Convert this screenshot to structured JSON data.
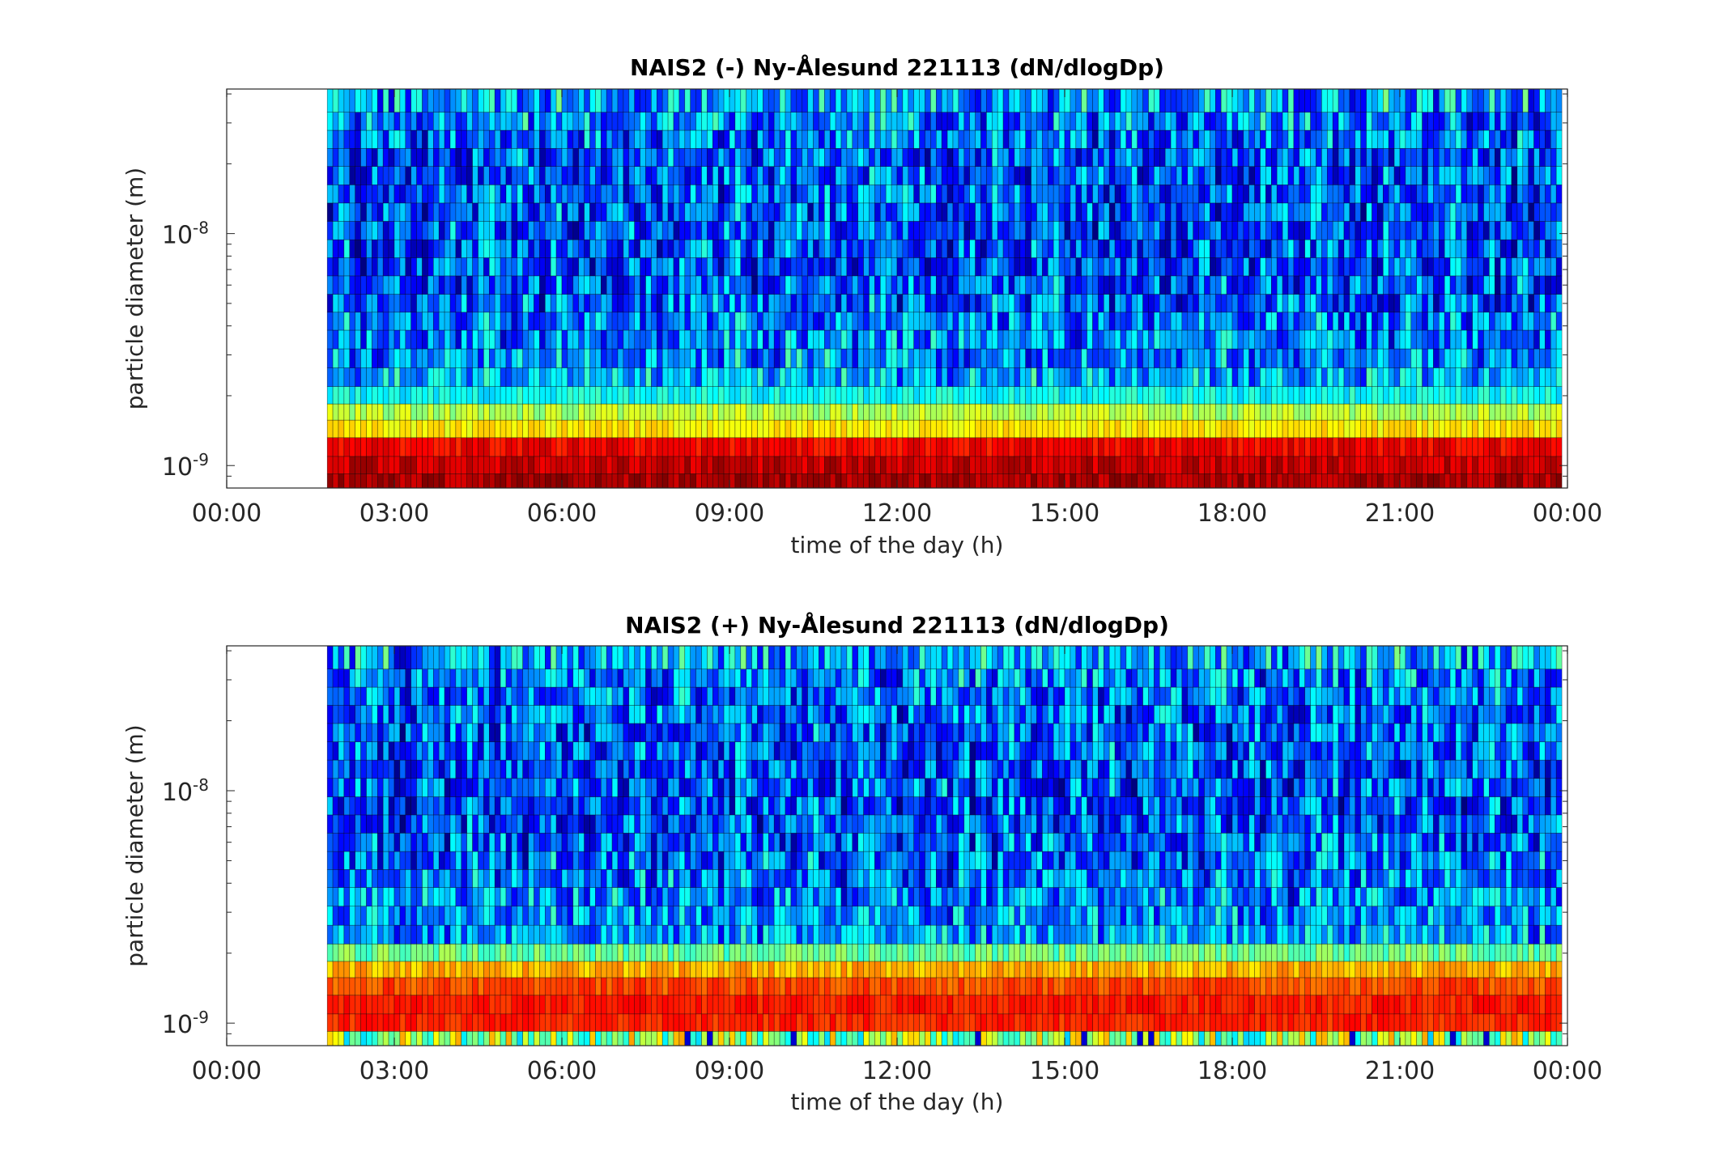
{
  "chart_data": [
    {
      "type": "heatmap",
      "title": "NAIS2 (-) Ny-Ålesund 221113 (dN/dlogDp)",
      "xlabel": "time of the day (h)",
      "ylabel": "particle diameter (m)",
      "x_tick_labels": [
        "00:00",
        "03:00",
        "06:00",
        "09:00",
        "12:00",
        "15:00",
        "18:00",
        "21:00",
        "00:00"
      ],
      "x_ticks_hours": [
        0,
        3,
        6,
        9,
        12,
        15,
        18,
        21,
        24
      ],
      "y_tick_labels": [
        {
          "base": "10",
          "exp": "-9"
        },
        {
          "base": "10",
          "exp": "-8"
        }
      ],
      "y_ticks_m": [
        1e-09,
        1e-08
      ],
      "y_scale": "log",
      "xlim_hours": [
        0,
        24
      ],
      "ylim_m": [
        8e-10,
        4.2e-08
      ],
      "data_start_hour": 1.8,
      "data_end_hour": 23.9,
      "time_step_min": 6,
      "colormap": "jet",
      "size_bins_m": [
        8.5e-10,
        1e-09,
        1.2e-09,
        1.45e-09,
        1.7e-09,
        2e-09,
        2.4e-09,
        2.9e-09,
        3.5e-09,
        4.2e-09,
        5e-09,
        6e-09,
        7.2e-09,
        8.6e-09,
        1.03e-08,
        1.24e-08,
        1.48e-08,
        1.78e-08,
        2.13e-08,
        2.55e-08,
        3.05e-08,
        3.65e-08
      ],
      "band_levels": [
        0.96,
        0.93,
        0.88,
        0.64,
        0.55,
        0.38,
        0.3,
        0.26,
        0.25,
        0.24,
        0.22,
        0.21,
        0.2,
        0.2,
        0.2,
        0.2,
        0.21,
        0.21,
        0.22,
        0.23,
        0.25,
        0.28
      ],
      "band_noise": [
        0.05,
        0.05,
        0.05,
        0.05,
        0.06,
        0.06,
        0.13,
        0.14,
        0.15,
        0.15,
        0.16,
        0.16,
        0.16,
        0.16,
        0.16,
        0.16,
        0.16,
        0.16,
        0.16,
        0.16,
        0.17,
        0.18
      ]
    },
    {
      "type": "heatmap",
      "title": "NAIS2 (+) Ny-Ålesund 221113 (dN/dlogDp)",
      "xlabel": "time of the day (h)",
      "ylabel": "particle diameter (m)",
      "x_tick_labels": [
        "00:00",
        "03:00",
        "06:00",
        "09:00",
        "12:00",
        "15:00",
        "18:00",
        "21:00",
        "00:00"
      ],
      "x_ticks_hours": [
        0,
        3,
        6,
        9,
        12,
        15,
        18,
        21,
        24
      ],
      "y_tick_labels": [
        {
          "base": "10",
          "exp": "-9"
        },
        {
          "base": "10",
          "exp": "-8"
        }
      ],
      "y_ticks_m": [
        1e-09,
        1e-08
      ],
      "y_scale": "log",
      "xlim_hours": [
        0,
        24
      ],
      "ylim_m": [
        8e-10,
        4.2e-08
      ],
      "data_start_hour": 1.8,
      "data_end_hour": 23.9,
      "time_step_min": 6,
      "colormap": "jet",
      "size_bins_m": [
        8.5e-10,
        1e-09,
        1.2e-09,
        1.45e-09,
        1.7e-09,
        2e-09,
        2.4e-09,
        2.9e-09,
        3.5e-09,
        4.2e-09,
        5e-09,
        6e-09,
        7.2e-09,
        8.6e-09,
        1.03e-08,
        1.24e-08,
        1.48e-08,
        1.78e-08,
        2.13e-08,
        2.55e-08,
        3.05e-08,
        3.65e-08
      ],
      "band_levels": [
        0.52,
        0.84,
        0.85,
        0.8,
        0.7,
        0.48,
        0.28,
        0.26,
        0.25,
        0.24,
        0.22,
        0.21,
        0.2,
        0.2,
        0.2,
        0.2,
        0.21,
        0.21,
        0.22,
        0.23,
        0.25,
        0.29
      ],
      "band_noise": [
        0.2,
        0.04,
        0.04,
        0.05,
        0.06,
        0.07,
        0.14,
        0.14,
        0.15,
        0.15,
        0.16,
        0.16,
        0.16,
        0.16,
        0.16,
        0.16,
        0.16,
        0.16,
        0.16,
        0.16,
        0.17,
        0.18
      ]
    }
  ]
}
